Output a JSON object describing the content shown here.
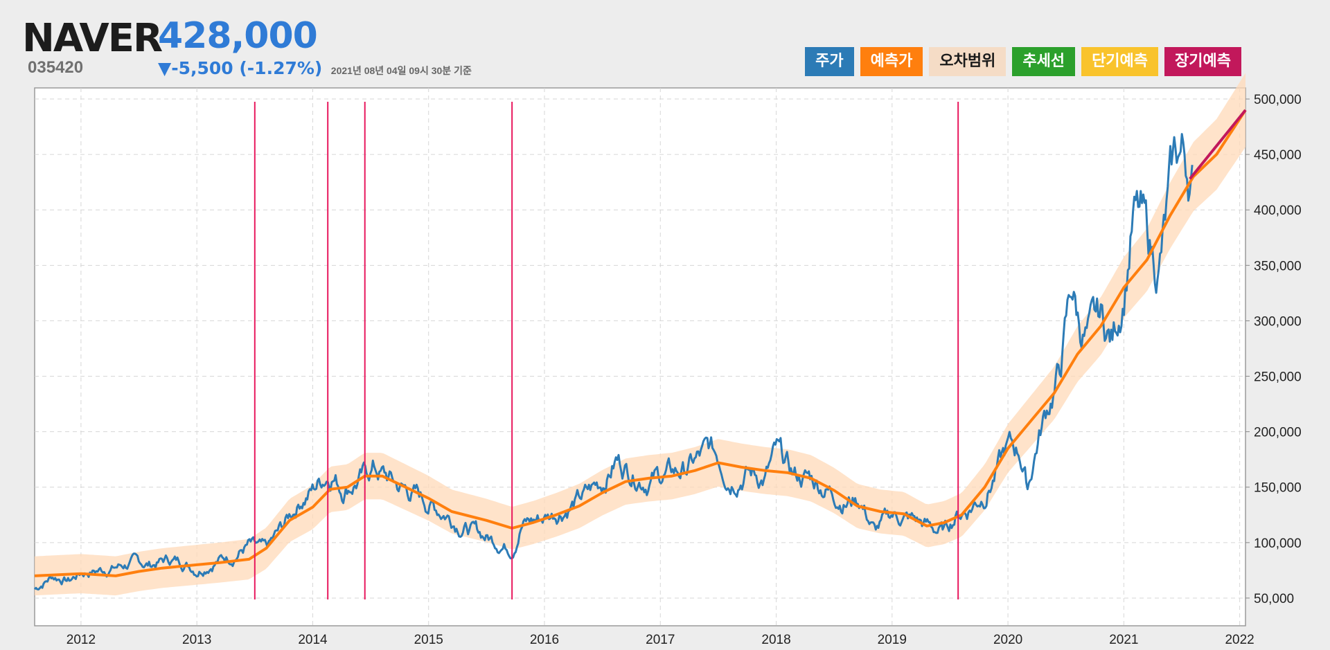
{
  "stock": {
    "name": "NAVER",
    "code": "035420",
    "price": "428,000",
    "change": "▼-5,500 (-1.27%)",
    "as_of": "2021년 08년 04일 09시 30분 기준"
  },
  "legend": [
    {
      "label": "주가",
      "bg": "#2c7bb6",
      "fg": "#ffffff"
    },
    {
      "label": "예측가",
      "bg": "#ff7f0e",
      "fg": "#ffffff"
    },
    {
      "label": "오차범위",
      "bg": "#f5dcc6",
      "fg": "#1a1a1a"
    },
    {
      "label": "추세선",
      "bg": "#2ca02c",
      "fg": "#ffffff"
    },
    {
      "label": "단기예측",
      "bg": "#f9c32c",
      "fg": "#ffffff"
    },
    {
      "label": "장기예측",
      "bg": "#c2185b",
      "fg": "#ffffff"
    }
  ],
  "colors": {
    "price": "#2c7bb6",
    "prediction": "#ff7f0e",
    "band": "#ffd9b8",
    "vline": "#e8175d",
    "long_term": "#c2185b"
  },
  "chart_data": {
    "type": "line",
    "xlim": [
      2011.6,
      2022.05
    ],
    "ylim": [
      25000,
      510000
    ],
    "x_ticks": [
      "2012",
      "2013",
      "2014",
      "2015",
      "2016",
      "2017",
      "2018",
      "2019",
      "2020",
      "2021",
      "2022"
    ],
    "x_tick_values": [
      2012,
      2013,
      2014,
      2015,
      2016,
      2017,
      2018,
      2019,
      2020,
      2021,
      2022
    ],
    "y_ticks": [
      "50,000",
      "100,000",
      "150,000",
      "200,000",
      "250,000",
      "300,000",
      "350,000",
      "400,000",
      "450,000",
      "500,000"
    ],
    "y_tick_values": [
      50000,
      100000,
      150000,
      200000,
      250000,
      300000,
      350000,
      400000,
      450000,
      500000
    ],
    "vertical_lines": [
      2013.5,
      2014.13,
      2014.45,
      2015.72,
      2019.57
    ],
    "series": [
      {
        "name": "주가",
        "x": [
          2011.6,
          2011.75,
          2011.9,
          2012.0,
          2012.15,
          2012.3,
          2012.45,
          2012.6,
          2012.75,
          2012.9,
          2013.0,
          2013.15,
          2013.3,
          2013.45,
          2013.5,
          2013.6,
          2013.75,
          2013.9,
          2014.0,
          2014.1,
          2014.17,
          2014.25,
          2014.35,
          2014.45,
          2014.52,
          2014.6,
          2014.75,
          2014.9,
          2015.0,
          2015.15,
          2015.3,
          2015.5,
          2015.62,
          2015.72,
          2015.8,
          2015.9,
          2016.0,
          2016.15,
          2016.3,
          2016.5,
          2016.62,
          2016.75,
          2016.9,
          2017.0,
          2017.2,
          2017.42,
          2017.5,
          2017.6,
          2017.75,
          2017.9,
          2018.0,
          2018.15,
          2018.3,
          2018.45,
          2018.6,
          2018.72,
          2018.85,
          2019.0,
          2019.2,
          2019.37,
          2019.45,
          2019.55,
          2019.65,
          2019.8,
          2020.0,
          2020.1,
          2020.17,
          2020.25,
          2020.35,
          2020.45,
          2020.55,
          2020.62,
          2020.7,
          2020.8,
          2020.9,
          2021.0,
          2021.08,
          2021.15,
          2021.22,
          2021.3,
          2021.38,
          2021.45,
          2021.5,
          2021.55,
          2021.59
        ],
        "values": [
          58000,
          70000,
          66000,
          73000,
          75000,
          78000,
          82000,
          80000,
          85000,
          82000,
          76000,
          84000,
          88000,
          98000,
          95000,
          92000,
          115000,
          140000,
          148000,
          160000,
          165000,
          150000,
          155000,
          160000,
          168000,
          162000,
          150000,
          143000,
          135000,
          127000,
          115000,
          105000,
          100000,
          95000,
          118000,
          120000,
          123000,
          130000,
          138000,
          155000,
          175000,
          165000,
          158000,
          160000,
          165000,
          182000,
          178000,
          160000,
          165000,
          158000,
          180000,
          160000,
          158000,
          148000,
          138000,
          140000,
          110000,
          125000,
          120000,
          112000,
          110000,
          125000,
          130000,
          145000,
          185000,
          183000,
          150000,
          190000,
          225000,
          255000,
          330000,
          295000,
          285000,
          300000,
          282000,
          330000,
          395000,
          390000,
          365000,
          348000,
          400000,
          445000,
          450000,
          440000,
          428000
        ]
      },
      {
        "name": "예측가",
        "x": [
          2011.6,
          2012.0,
          2012.3,
          2012.5,
          2012.7,
          2013.0,
          2013.2,
          2013.45,
          2013.6,
          2013.8,
          2014.0,
          2014.15,
          2014.3,
          2014.45,
          2014.6,
          2014.8,
          2015.0,
          2015.2,
          2015.5,
          2015.72,
          2015.9,
          2016.1,
          2016.3,
          2016.5,
          2016.7,
          2016.9,
          2017.1,
          2017.3,
          2017.5,
          2017.7,
          2017.9,
          2018.1,
          2018.3,
          2018.5,
          2018.7,
          2018.9,
          2019.1,
          2019.3,
          2019.45,
          2019.6,
          2019.8,
          2020.0,
          2020.2,
          2020.4,
          2020.6,
          2020.8,
          2021.0,
          2021.2,
          2021.4,
          2021.6,
          2021.8,
          2022.05
        ],
        "values": [
          70000,
          72000,
          70000,
          74000,
          77000,
          80000,
          82000,
          85000,
          95000,
          120000,
          132000,
          148000,
          150000,
          160000,
          160000,
          150000,
          140000,
          128000,
          120000,
          113000,
          118000,
          125000,
          133000,
          145000,
          155000,
          158000,
          160000,
          165000,
          172000,
          168000,
          165000,
          163000,
          158000,
          147000,
          133000,
          128000,
          126000,
          115000,
          118000,
          125000,
          150000,
          185000,
          210000,
          235000,
          270000,
          295000,
          330000,
          355000,
          395000,
          430000,
          450000,
          490000
        ]
      },
      {
        "name": "장기예측",
        "x": [
          2021.57,
          2022.05
        ],
        "values": [
          428000,
          490000
        ]
      }
    ],
    "band_halfwidth": 15000
  }
}
